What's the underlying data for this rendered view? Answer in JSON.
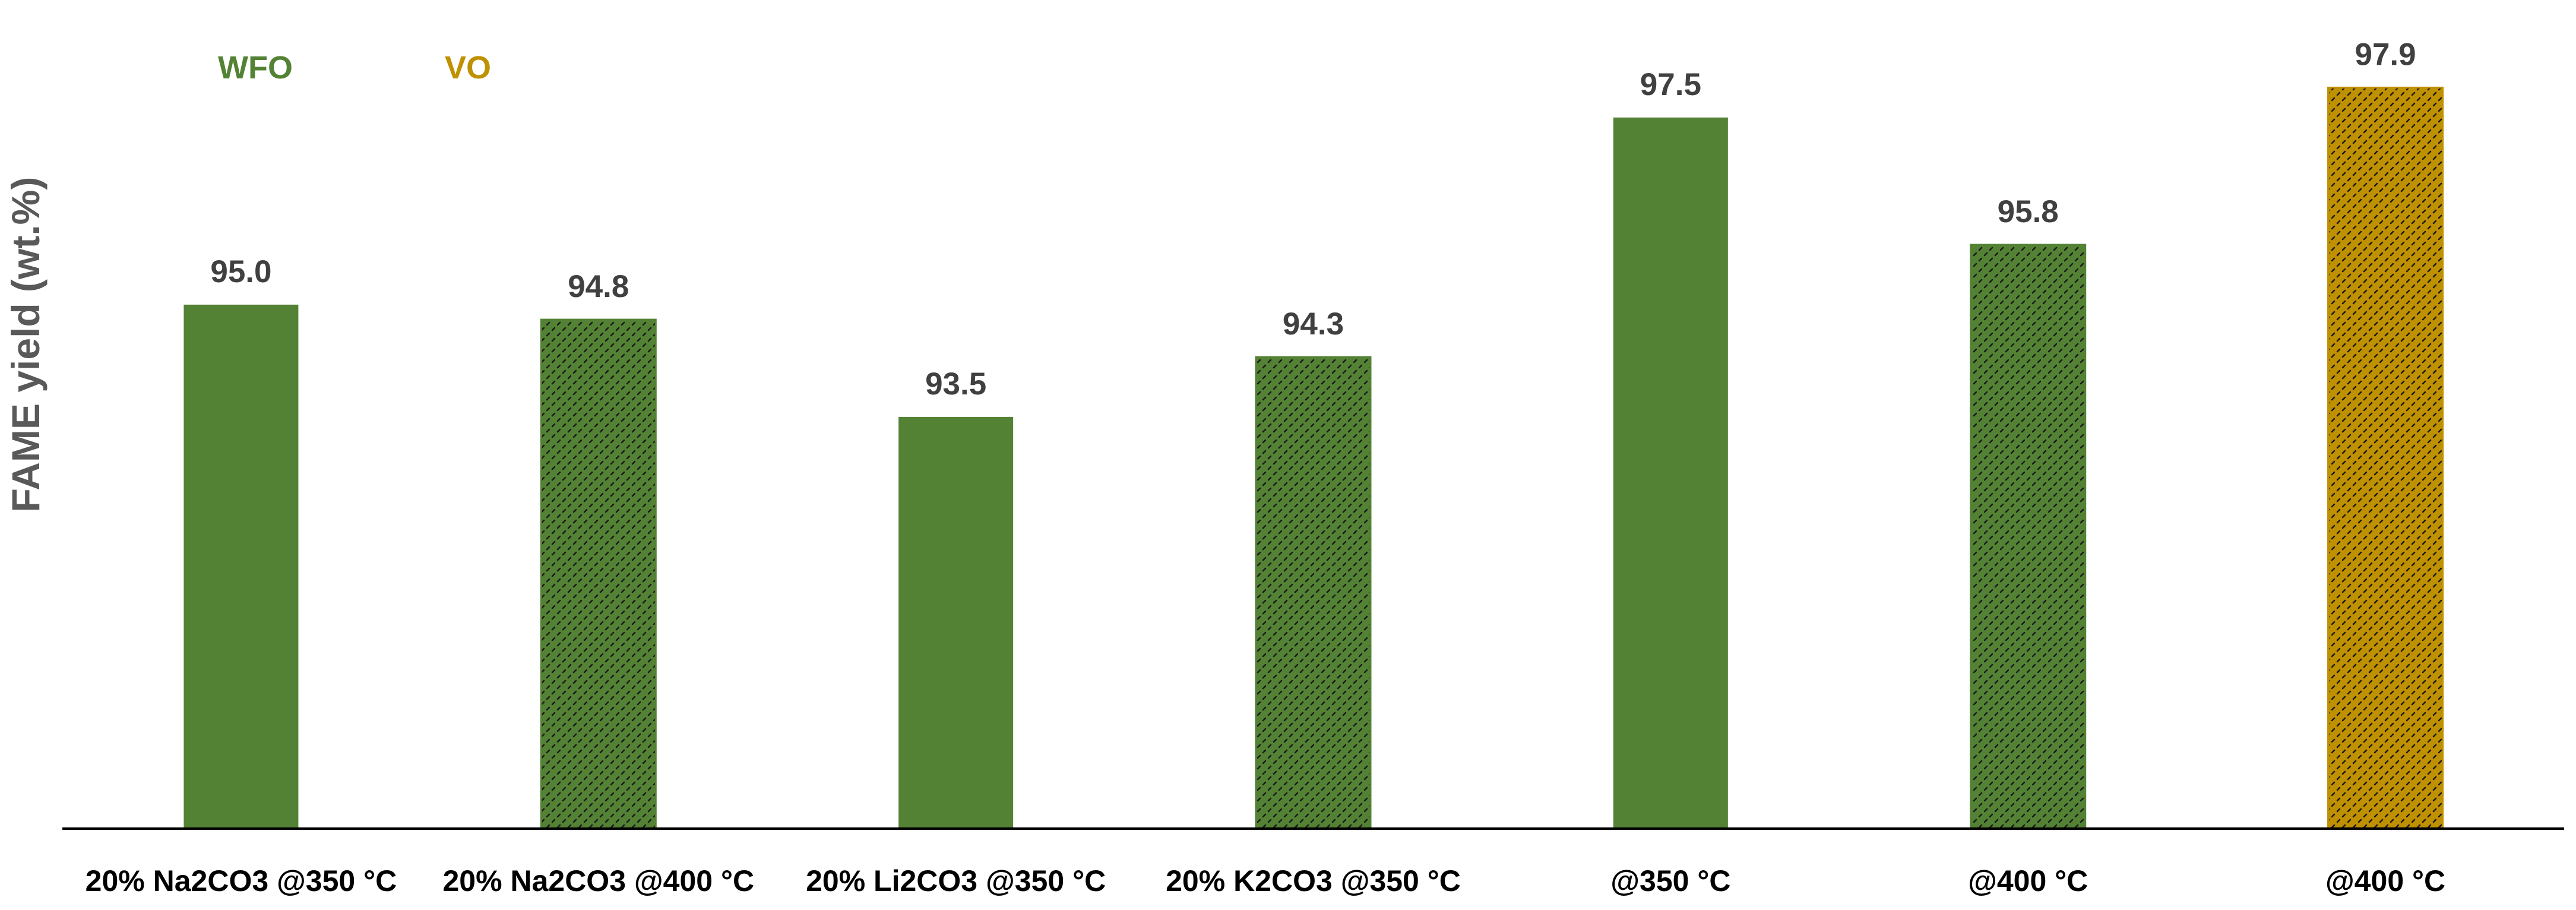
{
  "chart_data": {
    "type": "bar",
    "ylabel": "FAME yield (wt.%)",
    "categories": [
      "20% Na2CO3 @350 °C",
      "20% Na2CO3 @400 °C",
      "20% Li2CO3 @350 °C",
      "20% K2CO3 @350 °C",
      "@350 °C",
      "@400 °C",
      "@400 °C"
    ],
    "values": [
      95.0,
      94.8,
      93.5,
      94.3,
      97.5,
      95.8,
      97.9
    ],
    "value_labels": [
      "95.0",
      "94.8",
      "93.5",
      "94.3",
      "97.5",
      "95.8",
      "97.9"
    ],
    "bar_groups": [
      "WFO",
      "WFO",
      "WFO",
      "WFO",
      "WFO",
      "WFO",
      "VO"
    ],
    "bar_patterned": [
      false,
      true,
      false,
      true,
      false,
      true,
      true
    ],
    "legend": [
      {
        "label": "WFO",
        "color": "#548235"
      },
      {
        "label": "VO",
        "color": "#BF9000"
      }
    ],
    "ylim": [
      88.0,
      98.3
    ],
    "grid": false,
    "legend_position": "top-left",
    "colors": {
      "WFO": "#548235",
      "VO": "#BF9000",
      "text": "#404040",
      "axis_title": "#595959",
      "axis_line": "#000000"
    }
  }
}
